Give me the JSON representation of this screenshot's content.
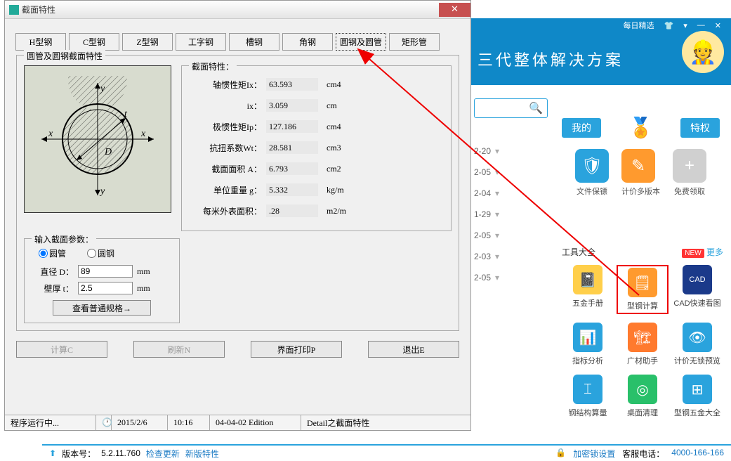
{
  "dialog": {
    "title": "截面特性",
    "tabs": [
      "H型钢",
      "C型钢",
      "Z型钢",
      "工字钢",
      "槽钢",
      "角钢",
      "圆钢及圆管",
      "矩形管"
    ],
    "active_tab": 6,
    "group_title": "圆管及圆钢截面特性",
    "props_title": "截面特性：",
    "props": [
      {
        "label": "轴惯性矩Ix：",
        "val": "63.593",
        "unit": "cm4"
      },
      {
        "label": "ix：",
        "val": "3.059",
        "unit": "cm"
      },
      {
        "label": "极惯性矩Ip：",
        "val": "127.186",
        "unit": "cm4"
      },
      {
        "label": "抗扭系数Wt：",
        "val": "28.581",
        "unit": "cm3"
      },
      {
        "label": "截面面积 A：",
        "val": "6.793",
        "unit": "cm2"
      },
      {
        "label": "单位重量 g：",
        "val": "5.332",
        "unit": "kg/m"
      },
      {
        "label": "每米外表面积：",
        "val": ".28",
        "unit": "m2/m"
      }
    ],
    "input_title": "输入截面参数：",
    "radio1": "圆管",
    "radio2": "圆钢",
    "param_d_label": "直径 D：",
    "param_d": "89",
    "param_d_unit": "mm",
    "param_t_label": "壁厚 t：",
    "param_t": "2.5",
    "param_t_unit": "mm",
    "spec_btn": "查看普通规格→",
    "btn_calc": "计算C",
    "btn_refresh": "刷新N",
    "btn_print": "界面打印P",
    "btn_exit": "退出E",
    "status": {
      "run": "程序运行中...",
      "date": "2015/2/6",
      "time": "10:16",
      "edition": "04-04-02 Edition",
      "detail": "Detail之截面特性"
    }
  },
  "header": {
    "slogan": "三代整体解决方案",
    "menu": "每日精选"
  },
  "privilege": {
    "left": "我的",
    "right": "特权",
    "items": [
      {
        "label": "文件保镖",
        "color": "#2aa3dd",
        "glyph": "🛡"
      },
      {
        "label": "计价多版本",
        "color": "#ff9a2e",
        "glyph": "✎"
      },
      {
        "label": "免费领取",
        "color": "#d0d0d0",
        "glyph": "+"
      }
    ]
  },
  "dates": [
    "2-20",
    "2-05",
    "2-04",
    "1-29",
    "2-05",
    "2-03",
    "2-05"
  ],
  "toolbox": {
    "title": "工具大全",
    "new": "NEW",
    "more": "更多",
    "items": [
      {
        "label": "五金手册",
        "color": "#ffcf4a",
        "glyph": "📓"
      },
      {
        "label": "型钢计算",
        "color": "#ff9a2e",
        "glyph": "🗒",
        "hl": true
      },
      {
        "label": "CAD快速看图",
        "color": "#1b3a8a",
        "glyph": "CAD"
      },
      {
        "label": "指标分析",
        "color": "#2aa3dd",
        "glyph": "📊"
      },
      {
        "label": "广材助手",
        "color": "#ff7a2e",
        "glyph": "🏗"
      },
      {
        "label": "计价无锁预览",
        "color": "#2aa3dd",
        "glyph": "👁"
      },
      {
        "label": "钢结构算量",
        "color": "#2aa3dd",
        "glyph": "⌶"
      },
      {
        "label": "桌面清理",
        "color": "#29c06a",
        "glyph": "◎"
      },
      {
        "label": "型钢五金大全",
        "color": "#2aa3dd",
        "glyph": "⊞"
      }
    ]
  },
  "footer": {
    "ver_label": "版本号：",
    "ver": "5.2.11.760",
    "check": "检查更新",
    "feat": "新版特性",
    "lock": "加密锁设置",
    "tel_label": "客服电话：",
    "tel": "4000-166-166"
  }
}
